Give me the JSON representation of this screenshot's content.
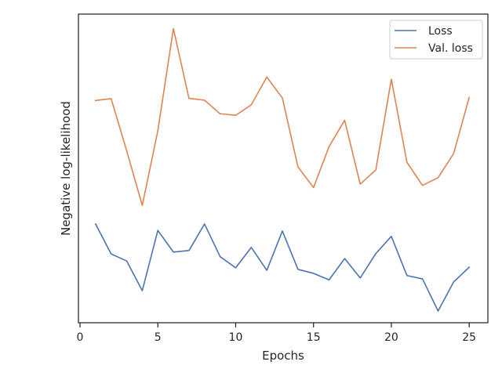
{
  "chart_data": {
    "type": "line",
    "title": "",
    "xlabel": "Epochs",
    "ylabel": "Negative log-likelihood",
    "xlim": [
      -0.1,
      26.2
    ],
    "ylim": [
      0.0,
      1.0
    ],
    "x_ticks": [
      0,
      5,
      10,
      15,
      20,
      25
    ],
    "y_ticks": [],
    "grid": false,
    "legend_position": "top-right",
    "x": [
      1,
      2,
      3,
      4,
      5,
      6,
      7,
      8,
      9,
      10,
      11,
      12,
      13,
      14,
      15,
      16,
      17,
      18,
      19,
      20,
      21,
      22,
      23,
      24,
      25
    ],
    "series": [
      {
        "name": "Loss",
        "color": "#4c72b0",
        "values": [
          0.32,
          0.223,
          0.2,
          0.104,
          0.299,
          0.229,
          0.234,
          0.32,
          0.214,
          0.178,
          0.244,
          0.17,
          0.297,
          0.173,
          0.16,
          0.139,
          0.208,
          0.145,
          0.224,
          0.28,
          0.153,
          0.142,
          0.038,
          0.132,
          0.18
        ]
      },
      {
        "name": "Val. loss",
        "color": "#dd8452",
        "values": [
          0.72,
          0.726,
          0.557,
          0.38,
          0.622,
          0.953,
          0.727,
          0.721,
          0.677,
          0.672,
          0.706,
          0.796,
          0.728,
          0.505,
          0.438,
          0.571,
          0.656,
          0.449,
          0.495,
          0.789,
          0.52,
          0.445,
          0.47,
          0.548,
          0.73
        ]
      }
    ]
  }
}
